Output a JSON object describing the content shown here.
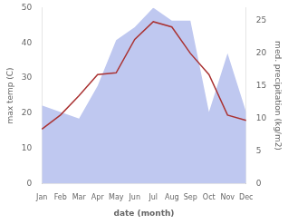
{
  "chart_data": {
    "type": "line",
    "xlabel": "date (month)",
    "ylabel": "max temp (C)",
    "y2label": "med. precipitation (kg/m2)",
    "categories": [
      "Jan",
      "Feb",
      "Mar",
      "Apr",
      "May",
      "Jun",
      "Jul",
      "Aug",
      "Sep",
      "Oct",
      "Nov",
      "Dec"
    ],
    "series": [
      {
        "type": "area",
        "axis": "y2",
        "color": "#bfc8f0",
        "values": [
          12,
          11,
          10,
          15,
          22,
          24,
          27,
          25,
          25,
          11,
          20,
          11
        ]
      },
      {
        "type": "line",
        "color": "#aa3333",
        "values": [
          15.5,
          19.5,
          25.0,
          31.0,
          31.5,
          41.0,
          46.0,
          44.5,
          37.0,
          31.0,
          19.5,
          18.0
        ]
      }
    ],
    "ylim": [
      0,
      50
    ],
    "yticks": [
      0,
      10,
      20,
      30,
      40,
      50
    ],
    "y2lim": [
      0,
      27
    ],
    "y2ticks": [
      0,
      5,
      10,
      15,
      20,
      25
    ],
    "grid": false
  }
}
